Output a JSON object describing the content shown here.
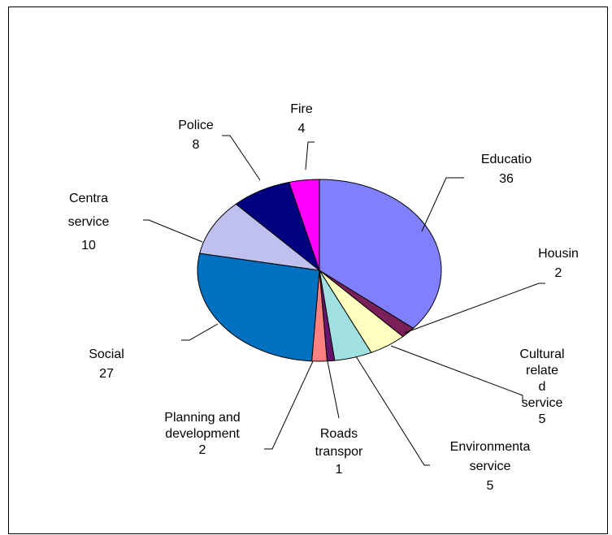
{
  "chart_data": {
    "type": "pie",
    "title": "",
    "slices": [
      {
        "label_lines": [
          "Educatio"
        ],
        "value": 36,
        "color": "#8080ff"
      },
      {
        "label_lines": [
          "Housin"
        ],
        "value": 2,
        "color": "#7a1f5a"
      },
      {
        "label_lines": [
          "Cultural",
          "relate",
          "d",
          "service"
        ],
        "value": 5,
        "color": "#ffffc0"
      },
      {
        "label_lines": [
          "Environmenta",
          "service"
        ],
        "value": 5,
        "color": "#a0e0e0"
      },
      {
        "label_lines": [
          "Roads",
          "transpor"
        ],
        "value": 1,
        "color": "#66146e"
      },
      {
        "label_lines": [
          "Planning and",
          "development"
        ],
        "value": 2,
        "color": "#ff8080"
      },
      {
        "label_lines": [
          "Social"
        ],
        "value": 27,
        "color": "#0070c0"
      },
      {
        "label_lines": [
          "Centra",
          "service"
        ],
        "value": 10,
        "color": "#c0c0f0"
      },
      {
        "label_lines": [
          "Police"
        ],
        "value": 8,
        "color": "#000080"
      },
      {
        "label_lines": [
          "Fire"
        ],
        "value": 4,
        "color": "#ff00ff"
      }
    ]
  }
}
